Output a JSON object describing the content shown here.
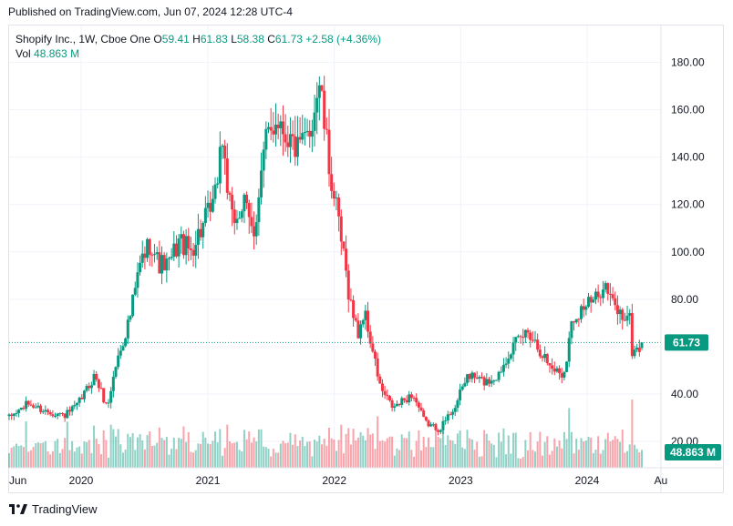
{
  "published": "Published on TradingView.com, Jun 07, 2024 12:28 UTC-4",
  "legend": {
    "symbol": "Shopify Inc., 1W, Cboe One",
    "o_label": "O",
    "open": "59.41",
    "h_label": "H",
    "high": "61.83",
    "l_label": "L",
    "low": "58.38",
    "c_label": "C",
    "close": "61.73",
    "change": "+2.58 (+4.36%)",
    "vol_label": "Vol",
    "vol": "48.863 M"
  },
  "brand": "TradingView",
  "colors": {
    "up": "#089981",
    "down": "#f23645",
    "grid": "#f0f3fa",
    "text": "#131722"
  },
  "chart_data": {
    "type": "candlestick",
    "symbol": "Shopify Inc.",
    "interval": "1W",
    "y_ticks": [
      "180.00",
      "160.00",
      "140.00",
      "120.00",
      "100.00",
      "80.00",
      "60.00",
      "40.00",
      "20.00"
    ],
    "x_ticks": [
      "Jun",
      "2020",
      "2021",
      "2022",
      "2023",
      "2024",
      "Au"
    ],
    "last_price": "61.73",
    "last_volume": "48.863 M",
    "ylim": [
      14,
      190
    ],
    "price_path": [
      [
        "2019-06-07",
        30
      ],
      [
        "2019-08-01",
        36
      ],
      [
        "2019-09-15",
        33
      ],
      [
        "2019-11-15",
        31
      ],
      [
        "2019-12-20",
        35
      ],
      [
        "2020-02-10",
        48
      ],
      [
        "2020-03-16",
        34
      ],
      [
        "2020-04-10",
        52
      ],
      [
        "2020-05-20",
        72
      ],
      [
        "2020-06-20",
        95
      ],
      [
        "2020-07-20",
        105
      ],
      [
        "2020-08-10",
        95
      ],
      [
        "2020-09-10",
        94
      ],
      [
        "2020-10-10",
        105
      ],
      [
        "2020-11-10",
        100
      ],
      [
        "2020-12-20",
        112
      ],
      [
        "2021-01-20",
        120
      ],
      [
        "2021-02-10",
        150
      ],
      [
        "2021-03-10",
        112
      ],
      [
        "2021-04-15",
        120
      ],
      [
        "2021-05-12",
        107
      ],
      [
        "2021-06-15",
        145
      ],
      [
        "2021-07-20",
        158
      ],
      [
        "2021-08-15",
        150
      ],
      [
        "2021-09-20",
        142
      ],
      [
        "2021-10-20",
        150
      ],
      [
        "2021-11-19",
        172
      ],
      [
        "2021-12-15",
        138
      ],
      [
        "2022-01-15",
        110
      ],
      [
        "2022-02-15",
        80
      ],
      [
        "2022-03-10",
        65
      ],
      [
        "2022-03-28",
        75
      ],
      [
        "2022-05-15",
        42
      ],
      [
        "2022-06-20",
        34
      ],
      [
        "2022-08-15",
        40
      ],
      [
        "2022-09-20",
        28
      ],
      [
        "2022-10-31",
        25
      ],
      [
        "2022-12-20",
        36
      ],
      [
        "2023-01-20",
        48
      ],
      [
        "2023-03-15",
        45
      ],
      [
        "2023-04-20",
        48
      ],
      [
        "2023-05-20",
        58
      ],
      [
        "2023-07-15",
        67
      ],
      [
        "2023-09-15",
        52
      ],
      [
        "2023-10-25",
        48
      ],
      [
        "2023-11-20",
        72
      ],
      [
        "2023-12-20",
        77
      ],
      [
        "2024-02-01",
        80
      ],
      [
        "2024-02-15",
        88
      ],
      [
        "2024-03-15",
        78
      ],
      [
        "2024-04-15",
        72
      ],
      [
        "2024-05-01",
        75
      ],
      [
        "2024-05-10",
        58
      ],
      [
        "2024-05-31",
        59.41
      ],
      [
        "2024-06-07",
        61.73
      ]
    ]
  }
}
